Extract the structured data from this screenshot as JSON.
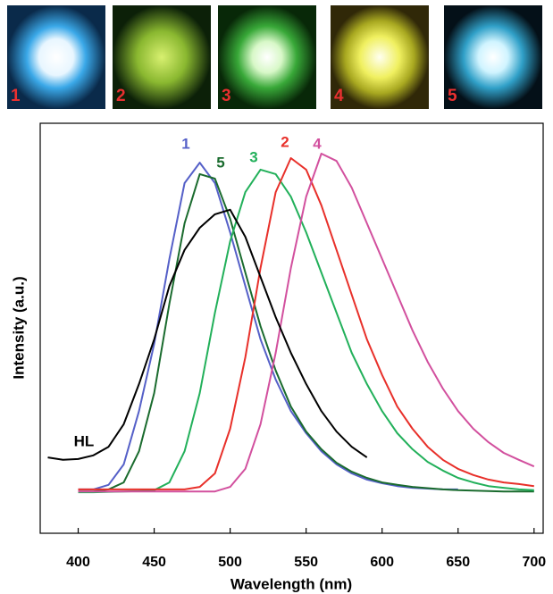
{
  "photos": {
    "labels": [
      "1",
      "2",
      "3",
      "4",
      "5"
    ]
  },
  "chart_data": {
    "type": "line",
    "x_label": "Wavelength (nm)",
    "y_label": "Intensity (a.u.)",
    "x": [
      380,
      390,
      400,
      410,
      420,
      430,
      440,
      450,
      460,
      470,
      480,
      490,
      500,
      510,
      520,
      530,
      540,
      550,
      560,
      570,
      580,
      590,
      600,
      610,
      620,
      630,
      640,
      650,
      660,
      670,
      680,
      690,
      700
    ],
    "xlim": [
      375,
      706
    ],
    "xticks": [
      400,
      450,
      500,
      550,
      600,
      650,
      700
    ],
    "ylim": [
      0,
      1
    ],
    "series": [
      {
        "name": "1",
        "color": "#5560c8",
        "values": [
          null,
          null,
          0.107,
          0.107,
          0.118,
          0.168,
          0.298,
          0.462,
          0.669,
          0.854,
          0.904,
          0.854,
          0.734,
          0.603,
          0.473,
          0.375,
          0.298,
          0.244,
          0.2,
          0.168,
          0.146,
          0.131,
          0.122,
          0.115,
          0.111,
          0.109,
          0.107,
          0.107,
          null,
          null,
          null,
          null,
          null
        ]
      },
      {
        "name": "5",
        "color": "#1a6b2e",
        "values": [
          null,
          null,
          0.102,
          0.102,
          0.107,
          0.124,
          0.2,
          0.342,
          0.56,
          0.756,
          0.876,
          0.865,
          0.767,
          0.636,
          0.505,
          0.397,
          0.309,
          0.248,
          0.205,
          0.172,
          0.15,
          0.135,
          0.124,
          0.118,
          0.113,
          0.11,
          0.107,
          0.105,
          0.104,
          0.103,
          0.102,
          0.102,
          0.102
        ]
      },
      {
        "name": "3",
        "color": "#22b05a",
        "values": [
          null,
          null,
          0.1,
          0.1,
          0.101,
          0.102,
          0.103,
          0.105,
          0.124,
          0.2,
          0.342,
          0.538,
          0.712,
          0.832,
          0.887,
          0.876,
          0.821,
          0.734,
          0.636,
          0.538,
          0.44,
          0.364,
          0.298,
          0.244,
          0.205,
          0.174,
          0.153,
          0.135,
          0.124,
          0.115,
          0.111,
          0.107,
          0.105
        ]
      },
      {
        "name": "2",
        "color": "#e8302a",
        "values": [
          null,
          null,
          0.107,
          0.107,
          0.107,
          0.107,
          0.107,
          0.107,
          0.107,
          0.107,
          0.113,
          0.146,
          0.255,
          0.429,
          0.647,
          0.832,
          0.915,
          0.887,
          0.8,
          0.691,
          0.582,
          0.473,
          0.386,
          0.309,
          0.255,
          0.211,
          0.179,
          0.157,
          0.142,
          0.131,
          0.124,
          0.12,
          0.115
        ]
      },
      {
        "name": "4",
        "color": "#d2509e",
        "values": [
          null,
          null,
          0.102,
          0.102,
          0.102,
          0.102,
          0.102,
          0.102,
          0.102,
          0.102,
          0.102,
          0.102,
          0.113,
          0.157,
          0.266,
          0.44,
          0.647,
          0.821,
          0.926,
          0.908,
          0.843,
          0.756,
          0.669,
          0.582,
          0.495,
          0.418,
          0.353,
          0.298,
          0.255,
          0.222,
          0.196,
          0.179,
          0.163
        ]
      },
      {
        "name": "HL",
        "color": "#000000",
        "values": [
          0.185,
          0.179,
          0.181,
          0.19,
          0.211,
          0.266,
          0.364,
          0.473,
          0.603,
          0.691,
          0.745,
          0.778,
          0.789,
          0.723,
          0.625,
          0.527,
          0.44,
          0.364,
          0.298,
          0.248,
          0.211,
          0.185,
          null,
          null,
          null,
          null,
          null,
          null,
          null,
          null,
          null,
          null,
          null
        ]
      }
    ]
  }
}
